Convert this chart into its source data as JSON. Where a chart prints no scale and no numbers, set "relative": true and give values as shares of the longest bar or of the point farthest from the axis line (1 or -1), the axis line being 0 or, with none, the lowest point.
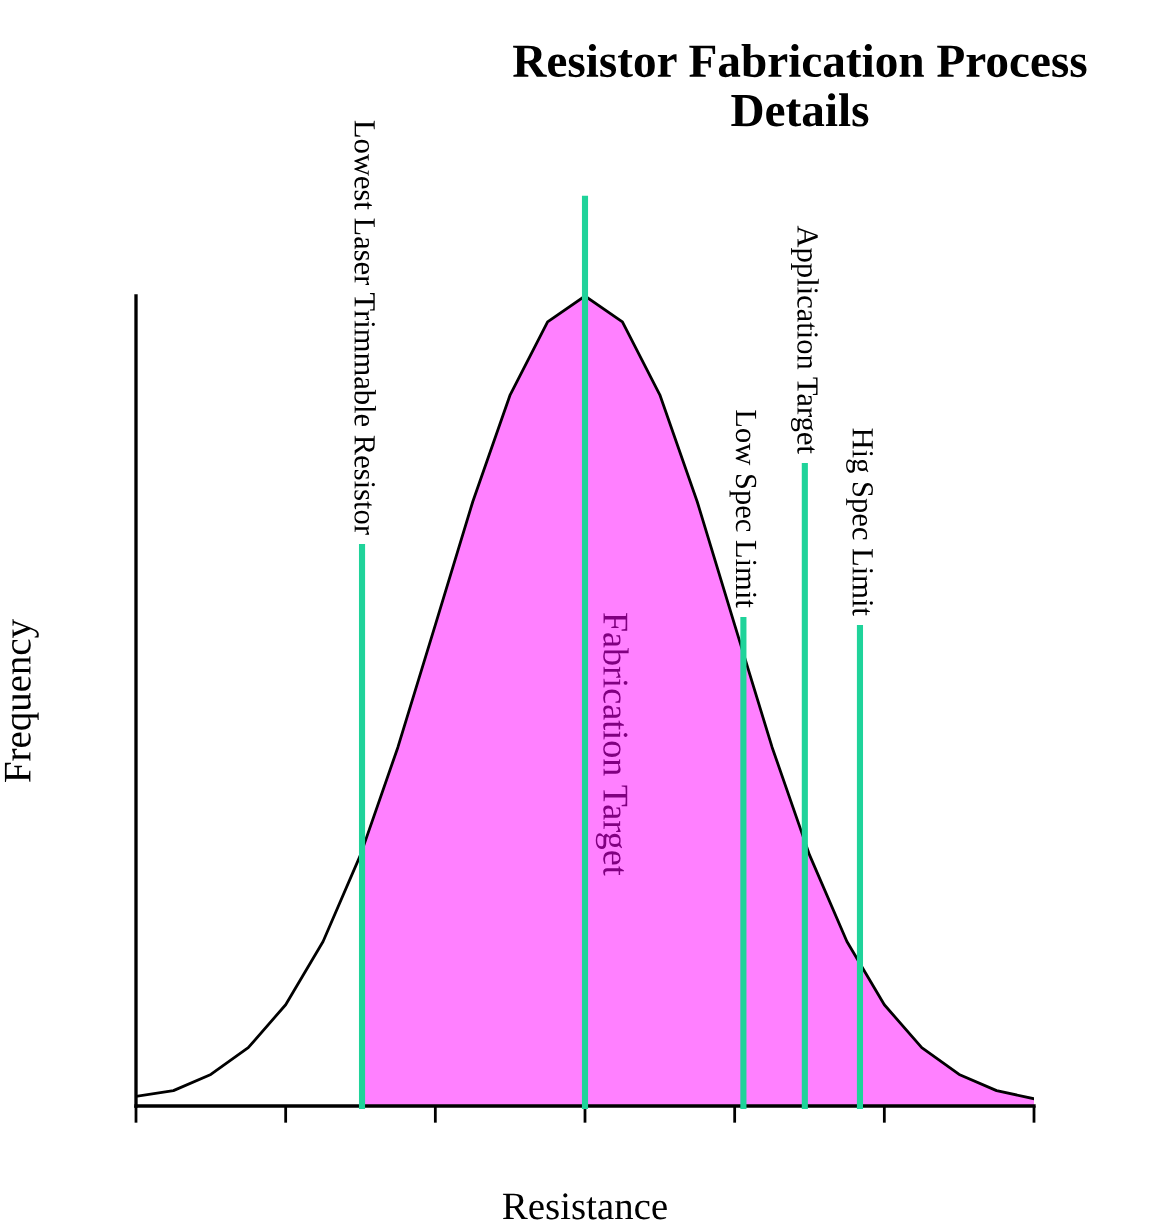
{
  "chart_data": {
    "type": "line",
    "title": "Resistor Fabrication Process Details",
    "xlabel": "Resistance",
    "ylabel": "Frequency",
    "relative": true,
    "categories": [
      null,
      null,
      null,
      null,
      null,
      null,
      null,
      null,
      null,
      null,
      null,
      null,
      null,
      null,
      null,
      null,
      null,
      null,
      null,
      null,
      null,
      null,
      null,
      null,
      null
    ],
    "series": [
      {
        "type": "area",
        "color": "#ff80ff",
        "values": [
          null,
          null,
          null,
          null,
          null,
          null,
          0.31,
          0.443,
          0.594,
          0.746,
          0.878,
          0.968,
          1.0,
          0.968,
          0.878,
          0.746,
          0.594,
          0.443,
          0.31,
          0.203,
          0.125,
          0.072,
          0.039,
          0.019,
          0.009
        ]
      },
      {
        "color": "#000000",
        "values": [
          0.012,
          0.019,
          0.039,
          0.072,
          0.125,
          0.203,
          0.31,
          0.443,
          0.594,
          0.746,
          0.878,
          0.968,
          1.0,
          0.968,
          0.878,
          0.746,
          0.594,
          0.443,
          0.31,
          0.203,
          0.125,
          0.072,
          0.039,
          0.019,
          0.009
        ]
      }
    ],
    "tick_labels": false,
    "annotations": [
      "Lowest Laser Trimmable Resistor",
      "Fabrication Target",
      "Low Spec Limit",
      "Application Target",
      "Hig Spec Limit"
    ]
  }
}
